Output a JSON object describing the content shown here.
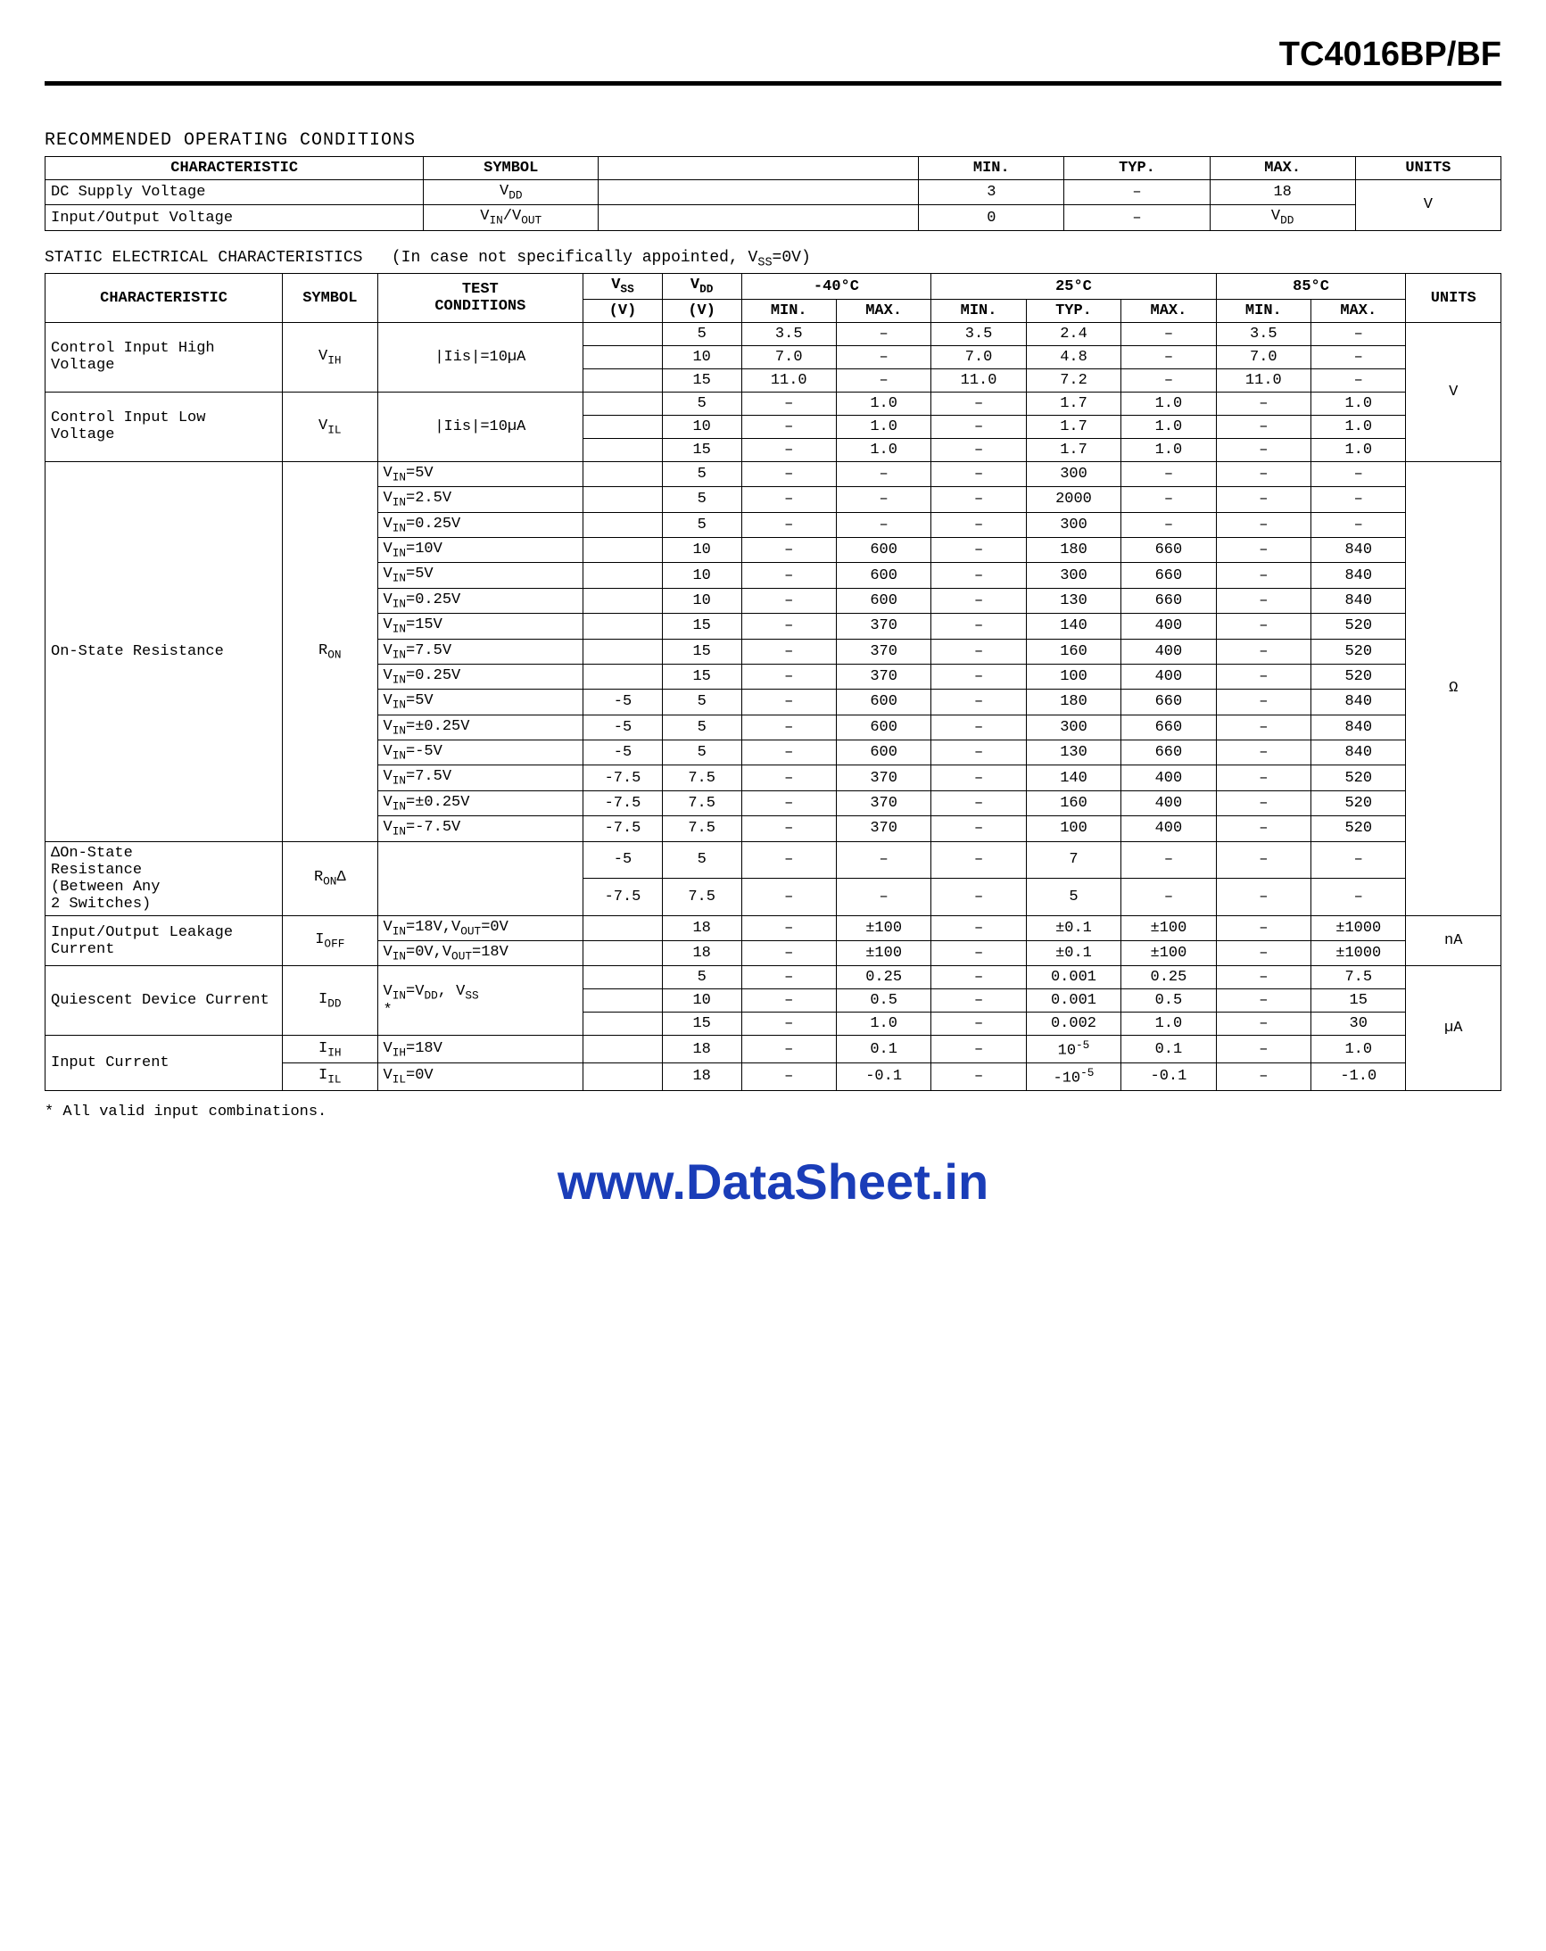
{
  "header": {
    "part_no": "TC4016BP/BF"
  },
  "recommended": {
    "title": "RECOMMENDED OPERATING CONDITIONS",
    "cols": [
      "CHARACTERISTIC",
      "SYMBOL",
      "",
      "MIN.",
      "TYP.",
      "MAX.",
      "UNITS"
    ],
    "rows": [
      {
        "char": "DC Supply Voltage",
        "sym": "V_DD",
        "blank": "",
        "min": "3",
        "typ": "–",
        "max": "18"
      },
      {
        "char": "Input/Output Voltage",
        "sym": "V_IN/V_OUT",
        "blank": "",
        "min": "0",
        "typ": "–",
        "max": "V_DD"
      }
    ],
    "units": "V"
  },
  "static": {
    "title": "STATIC ELECTRICAL CHARACTERISTICS",
    "note": "(In case not specifically appointed, V_SS=0V)",
    "head": {
      "char": "CHARACTERISTIC",
      "sym": "SYMBOL",
      "test": "TEST CONDITIONS",
      "vss": "V_SS",
      "vdd": "V_DD",
      "t1": "-40°C",
      "t2": "25°C",
      "t3": "85°C",
      "vssu": "(V)",
      "vddu": "(V)",
      "mn": "MIN.",
      "mx": "MAX.",
      "ty": "TYP.",
      "units": "UNITS"
    },
    "sections": [
      {
        "char": "Control Input High Voltage",
        "sym": "V_IH",
        "cond": "|Iis|=10µA",
        "units": "V",
        "rows": [
          {
            "vss": "",
            "vdd": "5",
            "m1": "3.5",
            "x1": "–",
            "m2": "3.5",
            "t2": "2.4",
            "x2": "–",
            "m3": "3.5",
            "x3": "–"
          },
          {
            "vss": "",
            "vdd": "10",
            "m1": "7.0",
            "x1": "–",
            "m2": "7.0",
            "t2": "4.8",
            "x2": "–",
            "m3": "7.0",
            "x3": "–"
          },
          {
            "vss": "",
            "vdd": "15",
            "m1": "11.0",
            "x1": "–",
            "m2": "11.0",
            "t2": "7.2",
            "x2": "–",
            "m3": "11.0",
            "x3": "–"
          }
        ]
      },
      {
        "char": "Control Input Low Voltage",
        "sym": "V_IL",
        "cond": "|Iis|=10µA",
        "units": "",
        "rows": [
          {
            "vss": "",
            "vdd": "5",
            "m1": "–",
            "x1": "1.0",
            "m2": "–",
            "t2": "1.7",
            "x2": "1.0",
            "m3": "–",
            "x3": "1.0"
          },
          {
            "vss": "",
            "vdd": "10",
            "m1": "–",
            "x1": "1.0",
            "m2": "–",
            "t2": "1.7",
            "x2": "1.0",
            "m3": "–",
            "x3": "1.0"
          },
          {
            "vss": "",
            "vdd": "15",
            "m1": "–",
            "x1": "1.0",
            "m2": "–",
            "t2": "1.7",
            "x2": "1.0",
            "m3": "–",
            "x3": "1.0"
          }
        ]
      },
      {
        "char": "On-State Resistance",
        "sym": "R_ON",
        "units": "Ω",
        "groups": [
          {
            "conds": [
              "V_IN=5V",
              "V_IN=2.5V",
              "V_IN=0.25V"
            ],
            "vss": [
              "",
              "",
              ""
            ],
            "vdd": [
              "5",
              "5",
              "5"
            ],
            "rows": [
              {
                "m1": "–",
                "x1": "–",
                "m2": "–",
                "t2": "300",
                "x2": "–",
                "m3": "–",
                "x3": "–"
              },
              {
                "m1": "–",
                "x1": "–",
                "m2": "–",
                "t2": "2000",
                "x2": "–",
                "m3": "–",
                "x3": "–"
              },
              {
                "m1": "–",
                "x1": "–",
                "m2": "–",
                "t2": "300",
                "x2": "–",
                "m3": "–",
                "x3": "–"
              }
            ]
          },
          {
            "conds": [
              "V_IN=10V",
              "V_IN=5V",
              "V_IN=0.25V"
            ],
            "vss": [
              "",
              "",
              ""
            ],
            "vdd": [
              "10",
              "10",
              "10"
            ],
            "rows": [
              {
                "m1": "–",
                "x1": "600",
                "m2": "–",
                "t2": "180",
                "x2": "660",
                "m3": "–",
                "x3": "840"
              },
              {
                "m1": "–",
                "x1": "600",
                "m2": "–",
                "t2": "300",
                "x2": "660",
                "m3": "–",
                "x3": "840"
              },
              {
                "m1": "–",
                "x1": "600",
                "m2": "–",
                "t2": "130",
                "x2": "660",
                "m3": "–",
                "x3": "840"
              }
            ]
          },
          {
            "conds": [
              "V_IN=15V",
              "V_IN=7.5V",
              "V_IN=0.25V"
            ],
            "vss": [
              "",
              "",
              ""
            ],
            "vdd": [
              "15",
              "15",
              "15"
            ],
            "rows": [
              {
                "m1": "–",
                "x1": "370",
                "m2": "–",
                "t2": "140",
                "x2": "400",
                "m3": "–",
                "x3": "520"
              },
              {
                "m1": "–",
                "x1": "370",
                "m2": "–",
                "t2": "160",
                "x2": "400",
                "m3": "–",
                "x3": "520"
              },
              {
                "m1": "–",
                "x1": "370",
                "m2": "–",
                "t2": "100",
                "x2": "400",
                "m3": "–",
                "x3": "520"
              }
            ]
          },
          {
            "conds": [
              "V_IN=5V",
              "V_IN=±0.25V",
              "V_IN=-5V"
            ],
            "vss": [
              "-5",
              "-5",
              "-5"
            ],
            "vdd": [
              "5",
              "5",
              "5"
            ],
            "rows": [
              {
                "m1": "–",
                "x1": "600",
                "m2": "–",
                "t2": "180",
                "x2": "660",
                "m3": "–",
                "x3": "840"
              },
              {
                "m1": "–",
                "x1": "600",
                "m2": "–",
                "t2": "300",
                "x2": "660",
                "m3": "–",
                "x3": "840"
              },
              {
                "m1": "–",
                "x1": "600",
                "m2": "–",
                "t2": "130",
                "x2": "660",
                "m3": "–",
                "x3": "840"
              }
            ]
          },
          {
            "conds": [
              "V_IN=7.5V",
              "V_IN=±0.25V",
              "V_IN=-7.5V"
            ],
            "vss": [
              "-7.5",
              "-7.5",
              "-7.5"
            ],
            "vdd": [
              "7.5",
              "7.5",
              "7.5"
            ],
            "rows": [
              {
                "m1": "–",
                "x1": "370",
                "m2": "–",
                "t2": "140",
                "x2": "400",
                "m3": "–",
                "x3": "520"
              },
              {
                "m1": "–",
                "x1": "370",
                "m2": "–",
                "t2": "160",
                "x2": "400",
                "m3": "–",
                "x3": "520"
              },
              {
                "m1": "–",
                "x1": "370",
                "m2": "–",
                "t2": "100",
                "x2": "400",
                "m3": "–",
                "x3": "520"
              }
            ]
          }
        ]
      },
      {
        "char": "ΔOn-State Resistance (Between Any 2 Switches)",
        "sym": "R_ONΔ",
        "cond": "",
        "units": "",
        "rows": [
          {
            "vss": "-5",
            "vdd": "5",
            "m1": "–",
            "x1": "–",
            "m2": "–",
            "t2": "7",
            "x2": "–",
            "m3": "–",
            "x3": "–"
          },
          {
            "vss": "-7.5",
            "vdd": "7.5",
            "m1": "–",
            "x1": "–",
            "m2": "–",
            "t2": "5",
            "x2": "–",
            "m3": "–",
            "x3": "–"
          }
        ]
      },
      {
        "char": "Input/Output Leakage Current",
        "sym": "I_OFF",
        "units": "nA",
        "rows": [
          {
            "cond": "V_IN=18V,V_OUT=0V",
            "vss": "",
            "vdd": "18",
            "m1": "–",
            "x1": "±100",
            "m2": "–",
            "t2": "±0.1",
            "x2": "±100",
            "m3": "–",
            "x3": "±1000"
          },
          {
            "cond": "V_IN=0V,V_OUT=18V",
            "vss": "",
            "vdd": "18",
            "m1": "–",
            "x1": "±100",
            "m2": "–",
            "t2": "±0.1",
            "x2": "±100",
            "m3": "–",
            "x3": "±1000"
          }
        ]
      },
      {
        "char": "Quiescent Device Current",
        "sym": "I_DD",
        "cond": "V_IN=V_DD, V_SS *",
        "units": "µA",
        "rows": [
          {
            "vss": "",
            "vdd": "5",
            "m1": "–",
            "x1": "0.25",
            "m2": "–",
            "t2": "0.001",
            "x2": "0.25",
            "m3": "–",
            "x3": "7.5"
          },
          {
            "vss": "",
            "vdd": "10",
            "m1": "–",
            "x1": "0.5",
            "m2": "–",
            "t2": "0.001",
            "x2": "0.5",
            "m3": "–",
            "x3": "15"
          },
          {
            "vss": "",
            "vdd": "15",
            "m1": "–",
            "x1": "1.0",
            "m2": "–",
            "t2": "0.002",
            "x2": "1.0",
            "m3": "–",
            "x3": "30"
          }
        ]
      },
      {
        "char": "Input Current",
        "units": "",
        "rows": [
          {
            "sym": "I_IH",
            "cond": "V_IH=18V",
            "vss": "",
            "vdd": "18",
            "m1": "–",
            "x1": "0.1",
            "m2": "–",
            "t2": "10^-5",
            "x2": "0.1",
            "m3": "–",
            "x3": "1.0"
          },
          {
            "sym": "I_IL",
            "cond": "V_IL=0V",
            "vss": "",
            "vdd": "18",
            "m1": "–",
            "x1": "-0.1",
            "m2": "–",
            "t2": "-10^-5",
            "x2": "-0.1",
            "m3": "–",
            "x3": "-1.0"
          }
        ]
      }
    ],
    "footnote": "* All valid input combinations."
  },
  "url": "www.DataSheet.in",
  "style": {
    "col_widths_rec": [
      "26%",
      "12%",
      "22%",
      "10%",
      "10%",
      "10%",
      "10%"
    ],
    "text_color": "#000000",
    "bg": "#ffffff",
    "link": "#1a3db8"
  }
}
